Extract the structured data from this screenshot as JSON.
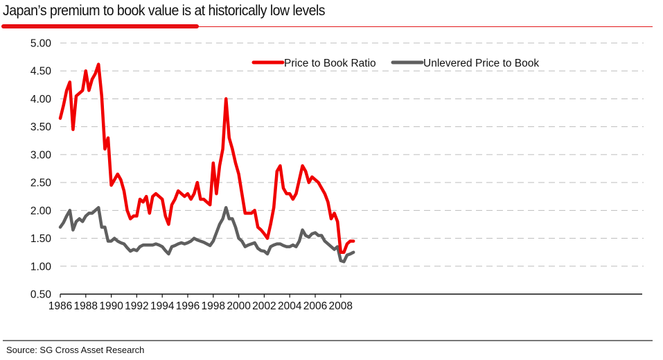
{
  "header": {
    "title": "Japan’s premium to book value is at historically low levels"
  },
  "footer": {
    "source": "Source: SG Cross Asset Research"
  },
  "colors": {
    "accent": "#e8000b",
    "series_red": "#f00000",
    "series_grey": "#5f5f5f",
    "grid": "#bdbdbd"
  },
  "chart_data": {
    "type": "line",
    "title": "Japan’s premium to book value is at historically low levels",
    "xlabel": "",
    "ylabel": "",
    "xlim": [
      1986,
      2009
    ],
    "ylim": [
      0.5,
      5.0
    ],
    "grid": true,
    "legend_position": "top-right",
    "x_ticks": [
      "1986",
      "1988",
      "1990",
      "1992",
      "1994",
      "1996",
      "1998",
      "2000",
      "2002",
      "2004",
      "2006",
      "2008"
    ],
    "y_ticks": [
      "5.00",
      "4.50",
      "4.00",
      "3.50",
      "3.00",
      "2.50",
      "2.00",
      "1.50",
      "1.00",
      "0.50"
    ],
    "x_tick_values": [
      1986,
      1988,
      1990,
      1992,
      1994,
      1996,
      1998,
      2000,
      2002,
      2004,
      2006,
      2008
    ],
    "y_tick_values": [
      5.0,
      4.5,
      4.0,
      3.5,
      3.0,
      2.5,
      2.0,
      1.5,
      1.0,
      0.5
    ],
    "x": [
      1986.0,
      1986.25,
      1986.5,
      1986.75,
      1987.0,
      1987.25,
      1987.5,
      1987.75,
      1988.0,
      1988.25,
      1988.5,
      1988.75,
      1989.0,
      1989.25,
      1989.5,
      1989.75,
      1990.0,
      1990.25,
      1990.5,
      1990.75,
      1991.0,
      1991.25,
      1991.5,
      1991.75,
      1992.0,
      1992.25,
      1992.5,
      1992.75,
      1993.0,
      1993.25,
      1993.5,
      1993.75,
      1994.0,
      1994.25,
      1994.5,
      1994.75,
      1995.0,
      1995.25,
      1995.5,
      1995.75,
      1996.0,
      1996.25,
      1996.5,
      1996.75,
      1997.0,
      1997.25,
      1997.5,
      1997.75,
      1998.0,
      1998.25,
      1998.5,
      1998.75,
      1999.0,
      1999.25,
      1999.5,
      1999.75,
      2000.0,
      2000.25,
      2000.5,
      2000.75,
      2001.0,
      2001.25,
      2001.5,
      2001.75,
      2002.0,
      2002.25,
      2002.5,
      2002.75,
      2003.0,
      2003.25,
      2003.5,
      2003.75,
      2004.0,
      2004.25,
      2004.5,
      2004.75,
      2005.0,
      2005.25,
      2005.5,
      2005.75,
      2006.0,
      2006.25,
      2006.5,
      2006.75,
      2007.0,
      2007.25,
      2007.5,
      2007.75,
      2008.0,
      2008.25,
      2008.5,
      2008.75,
      2009.0
    ],
    "series": [
      {
        "name": "Price to Book Ratio",
        "color": "#f00000",
        "values": [
          3.65,
          3.88,
          4.15,
          4.3,
          3.45,
          4.05,
          4.1,
          4.15,
          4.5,
          4.15,
          4.35,
          4.45,
          4.62,
          4.05,
          3.1,
          3.3,
          2.45,
          2.55,
          2.65,
          2.55,
          2.35,
          2.0,
          1.85,
          1.9,
          1.9,
          2.2,
          2.15,
          2.25,
          1.95,
          2.25,
          2.3,
          2.25,
          2.2,
          1.9,
          1.75,
          2.1,
          2.2,
          2.35,
          2.3,
          2.25,
          2.3,
          2.2,
          2.3,
          2.5,
          2.2,
          2.2,
          2.15,
          2.1,
          2.85,
          2.3,
          2.8,
          3.1,
          4.0,
          3.3,
          3.1,
          2.85,
          2.65,
          2.3,
          1.95,
          1.95,
          1.95,
          2.0,
          1.7,
          1.65,
          1.58,
          1.5,
          1.75,
          2.05,
          2.7,
          2.8,
          2.4,
          2.3,
          2.3,
          2.2,
          2.3,
          2.55,
          2.8,
          2.7,
          2.5,
          2.6,
          2.55,
          2.5,
          2.4,
          2.3,
          2.15,
          1.85,
          1.95,
          1.8,
          1.25,
          1.25,
          1.4,
          1.45,
          1.45
        ]
      },
      {
        "name": "Unlevered Price to Book",
        "color": "#5f5f5f",
        "values": [
          1.7,
          1.78,
          1.9,
          2.0,
          1.65,
          1.8,
          1.85,
          1.8,
          1.9,
          1.95,
          1.95,
          2.0,
          2.05,
          1.7,
          1.7,
          1.45,
          1.45,
          1.5,
          1.45,
          1.42,
          1.4,
          1.33,
          1.27,
          1.3,
          1.28,
          1.35,
          1.38,
          1.38,
          1.38,
          1.38,
          1.4,
          1.38,
          1.35,
          1.28,
          1.22,
          1.35,
          1.37,
          1.4,
          1.42,
          1.4,
          1.42,
          1.45,
          1.5,
          1.47,
          1.45,
          1.43,
          1.4,
          1.37,
          1.45,
          1.6,
          1.75,
          1.85,
          2.05,
          1.85,
          1.85,
          1.7,
          1.5,
          1.45,
          1.35,
          1.38,
          1.4,
          1.42,
          1.32,
          1.28,
          1.27,
          1.22,
          1.35,
          1.38,
          1.4,
          1.4,
          1.37,
          1.35,
          1.35,
          1.38,
          1.35,
          1.45,
          1.65,
          1.55,
          1.52,
          1.58,
          1.6,
          1.55,
          1.55,
          1.45,
          1.4,
          1.35,
          1.3,
          1.35,
          1.1,
          1.08,
          1.2,
          1.22,
          1.25
        ]
      }
    ]
  }
}
